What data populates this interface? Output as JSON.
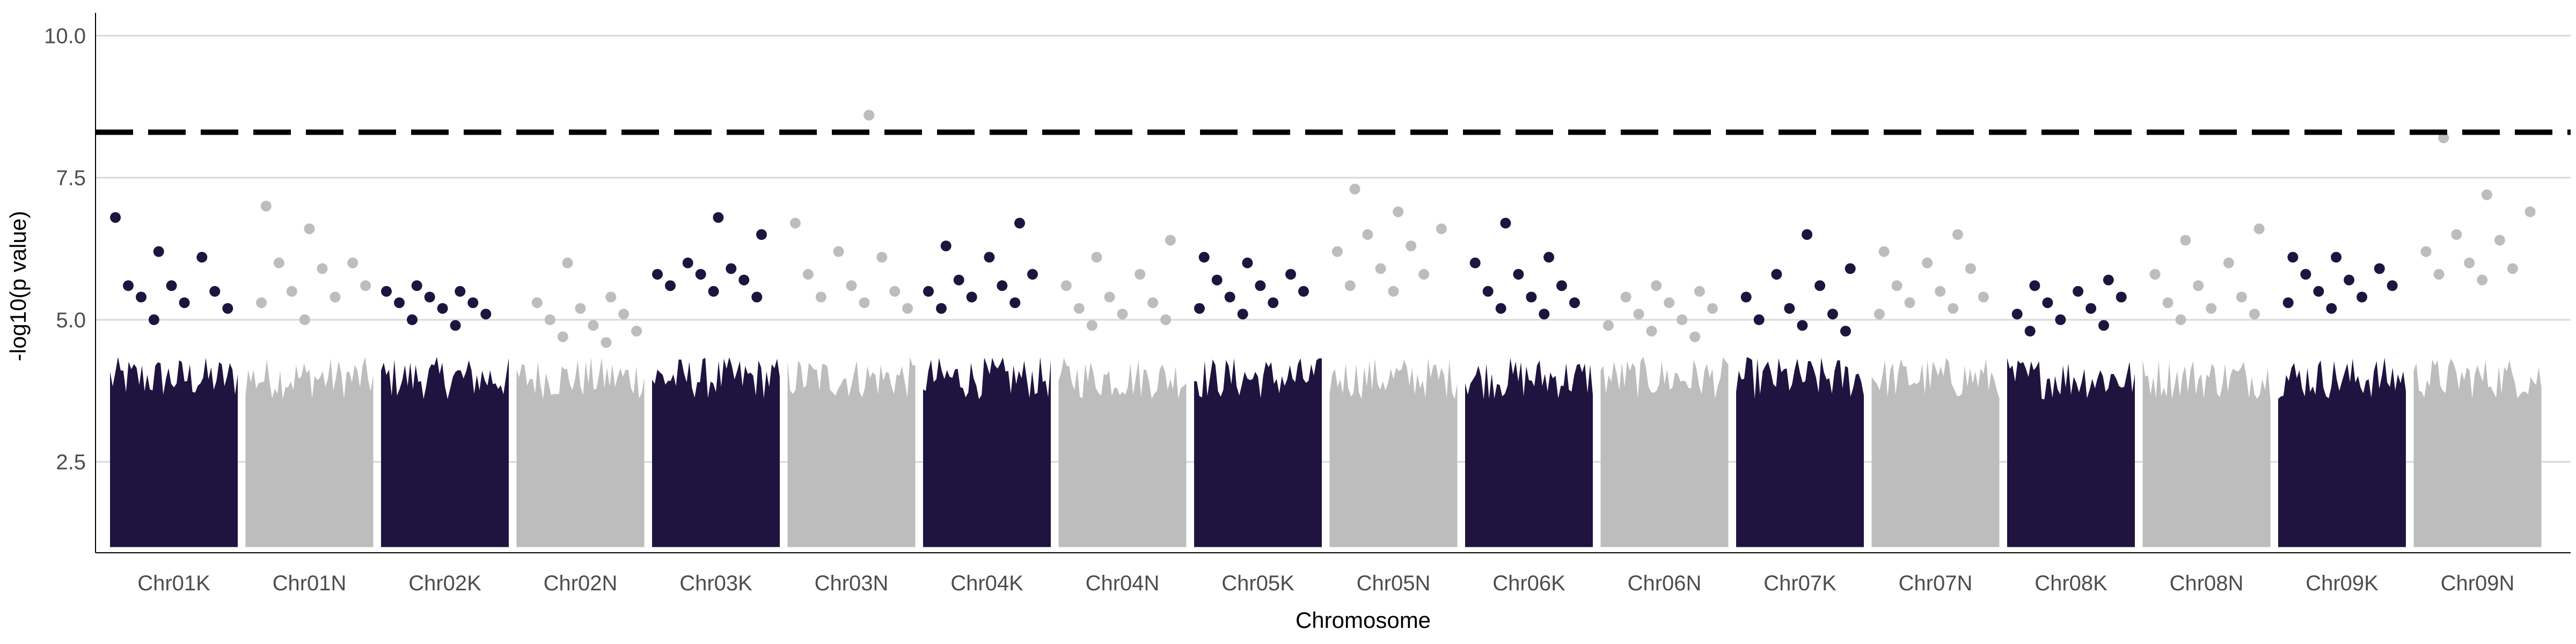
{
  "chart_data": {
    "type": "scatter",
    "subtype": "manhattan",
    "xlabel": "Chromosome",
    "ylabel": "-log10(p value)",
    "ylim": [
      0.9,
      10.4
    ],
    "y_ticks": [
      2.5,
      5.0,
      7.5,
      10.0
    ],
    "y_tick_labels": [
      "2.5",
      "5.0",
      "7.5",
      "10.0"
    ],
    "grid": "horizontal-major",
    "legend": "none",
    "threshold": {
      "value": 8.3,
      "style": "dashed",
      "color": "#000000"
    },
    "colors": {
      "odd": "#1f1440",
      "even": "#bdbdbd",
      "grid": "#d9d9d9",
      "axis": "#000000"
    },
    "points_base_min": 1.0,
    "chromosomes": [
      {
        "name": "Chr01K",
        "color": "#1f1440",
        "top_points": [
          6.8,
          6.2,
          6.1,
          5.6,
          5.6,
          5.5,
          5.4,
          5.3,
          5.2,
          5.0
        ]
      },
      {
        "name": "Chr01N",
        "color": "#bdbdbd",
        "top_points": [
          7.0,
          6.6,
          6.0,
          6.0,
          5.9,
          5.6,
          5.5,
          5.4,
          5.3,
          5.0
        ]
      },
      {
        "name": "Chr02K",
        "color": "#1f1440",
        "top_points": [
          5.6,
          5.5,
          5.5,
          5.4,
          5.3,
          5.3,
          5.2,
          5.1,
          5.0,
          4.9
        ]
      },
      {
        "name": "Chr02N",
        "color": "#bdbdbd",
        "top_points": [
          6.0,
          5.4,
          5.3,
          5.2,
          5.1,
          5.0,
          4.9,
          4.8,
          4.7,
          4.6
        ]
      },
      {
        "name": "Chr03K",
        "color": "#1f1440",
        "top_points": [
          6.8,
          6.5,
          6.0,
          5.9,
          5.8,
          5.8,
          5.7,
          5.6,
          5.5,
          5.4
        ]
      },
      {
        "name": "Chr03N",
        "color": "#bdbdbd",
        "top_points": [
          8.6,
          6.7,
          6.2,
          6.1,
          5.8,
          5.6,
          5.5,
          5.4,
          5.3,
          5.2
        ]
      },
      {
        "name": "Chr04K",
        "color": "#1f1440",
        "top_points": [
          6.7,
          6.3,
          6.1,
          5.8,
          5.7,
          5.6,
          5.5,
          5.4,
          5.3,
          5.2
        ]
      },
      {
        "name": "Chr04N",
        "color": "#bdbdbd",
        "top_points": [
          6.4,
          6.1,
          5.8,
          5.6,
          5.4,
          5.3,
          5.2,
          5.1,
          5.0,
          4.9
        ]
      },
      {
        "name": "Chr05K",
        "color": "#1f1440",
        "top_points": [
          6.1,
          6.0,
          5.8,
          5.7,
          5.6,
          5.5,
          5.4,
          5.3,
          5.2,
          5.1
        ]
      },
      {
        "name": "Chr05N",
        "color": "#bdbdbd",
        "top_points": [
          7.3,
          6.9,
          6.6,
          6.5,
          6.3,
          6.2,
          5.9,
          5.8,
          5.6,
          5.5
        ]
      },
      {
        "name": "Chr06K",
        "color": "#1f1440",
        "top_points": [
          6.7,
          6.1,
          6.0,
          5.8,
          5.6,
          5.5,
          5.4,
          5.3,
          5.2,
          5.1
        ]
      },
      {
        "name": "Chr06N",
        "color": "#bdbdbd",
        "top_points": [
          5.6,
          5.5,
          5.4,
          5.3,
          5.2,
          5.1,
          5.0,
          4.9,
          4.8,
          4.7
        ]
      },
      {
        "name": "Chr07K",
        "color": "#1f1440",
        "top_points": [
          6.5,
          5.9,
          5.8,
          5.6,
          5.4,
          5.2,
          5.1,
          5.0,
          4.9,
          4.8
        ]
      },
      {
        "name": "Chr07N",
        "color": "#bdbdbd",
        "top_points": [
          6.5,
          6.2,
          6.0,
          5.9,
          5.6,
          5.5,
          5.4,
          5.3,
          5.2,
          5.1
        ]
      },
      {
        "name": "Chr08K",
        "color": "#1f1440",
        "top_points": [
          5.7,
          5.6,
          5.5,
          5.4,
          5.3,
          5.2,
          5.1,
          5.0,
          4.9,
          4.8
        ]
      },
      {
        "name": "Chr08N",
        "color": "#bdbdbd",
        "top_points": [
          6.6,
          6.4,
          6.0,
          5.8,
          5.6,
          5.4,
          5.3,
          5.2,
          5.1,
          5.0
        ]
      },
      {
        "name": "Chr09K",
        "color": "#1f1440",
        "top_points": [
          6.1,
          6.1,
          5.9,
          5.8,
          5.7,
          5.6,
          5.5,
          5.4,
          5.3,
          5.2
        ]
      },
      {
        "name": "Chr09N",
        "color": "#bdbdbd",
        "top_points": [
          8.2,
          7.2,
          6.9,
          6.5,
          6.4,
          6.2,
          6.0,
          5.9,
          5.8,
          5.7
        ]
      }
    ]
  }
}
